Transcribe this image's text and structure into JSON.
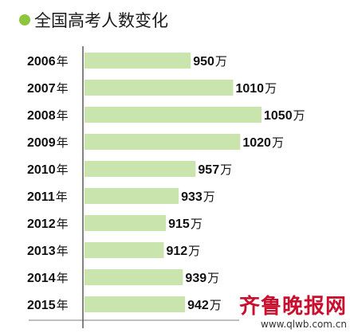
{
  "chart_data": {
    "type": "bar",
    "orientation": "horizontal",
    "title": "全国高考人数变化",
    "category_suffix": "年",
    "value_suffix": "万",
    "categories": [
      "2006",
      "2007",
      "2008",
      "2009",
      "2010",
      "2011",
      "2012",
      "2013",
      "2014",
      "2015"
    ],
    "values": [
      950,
      1010,
      1050,
      1020,
      957,
      933,
      915,
      912,
      939,
      942
    ],
    "bar_color": "#c9e4ad",
    "title_dot_color": "#8cc63e",
    "grid": false
  },
  "watermark": {
    "logo": "齐鲁晚报网",
    "url": "www.qlwb.com.cn",
    "color": "#c8102e"
  }
}
